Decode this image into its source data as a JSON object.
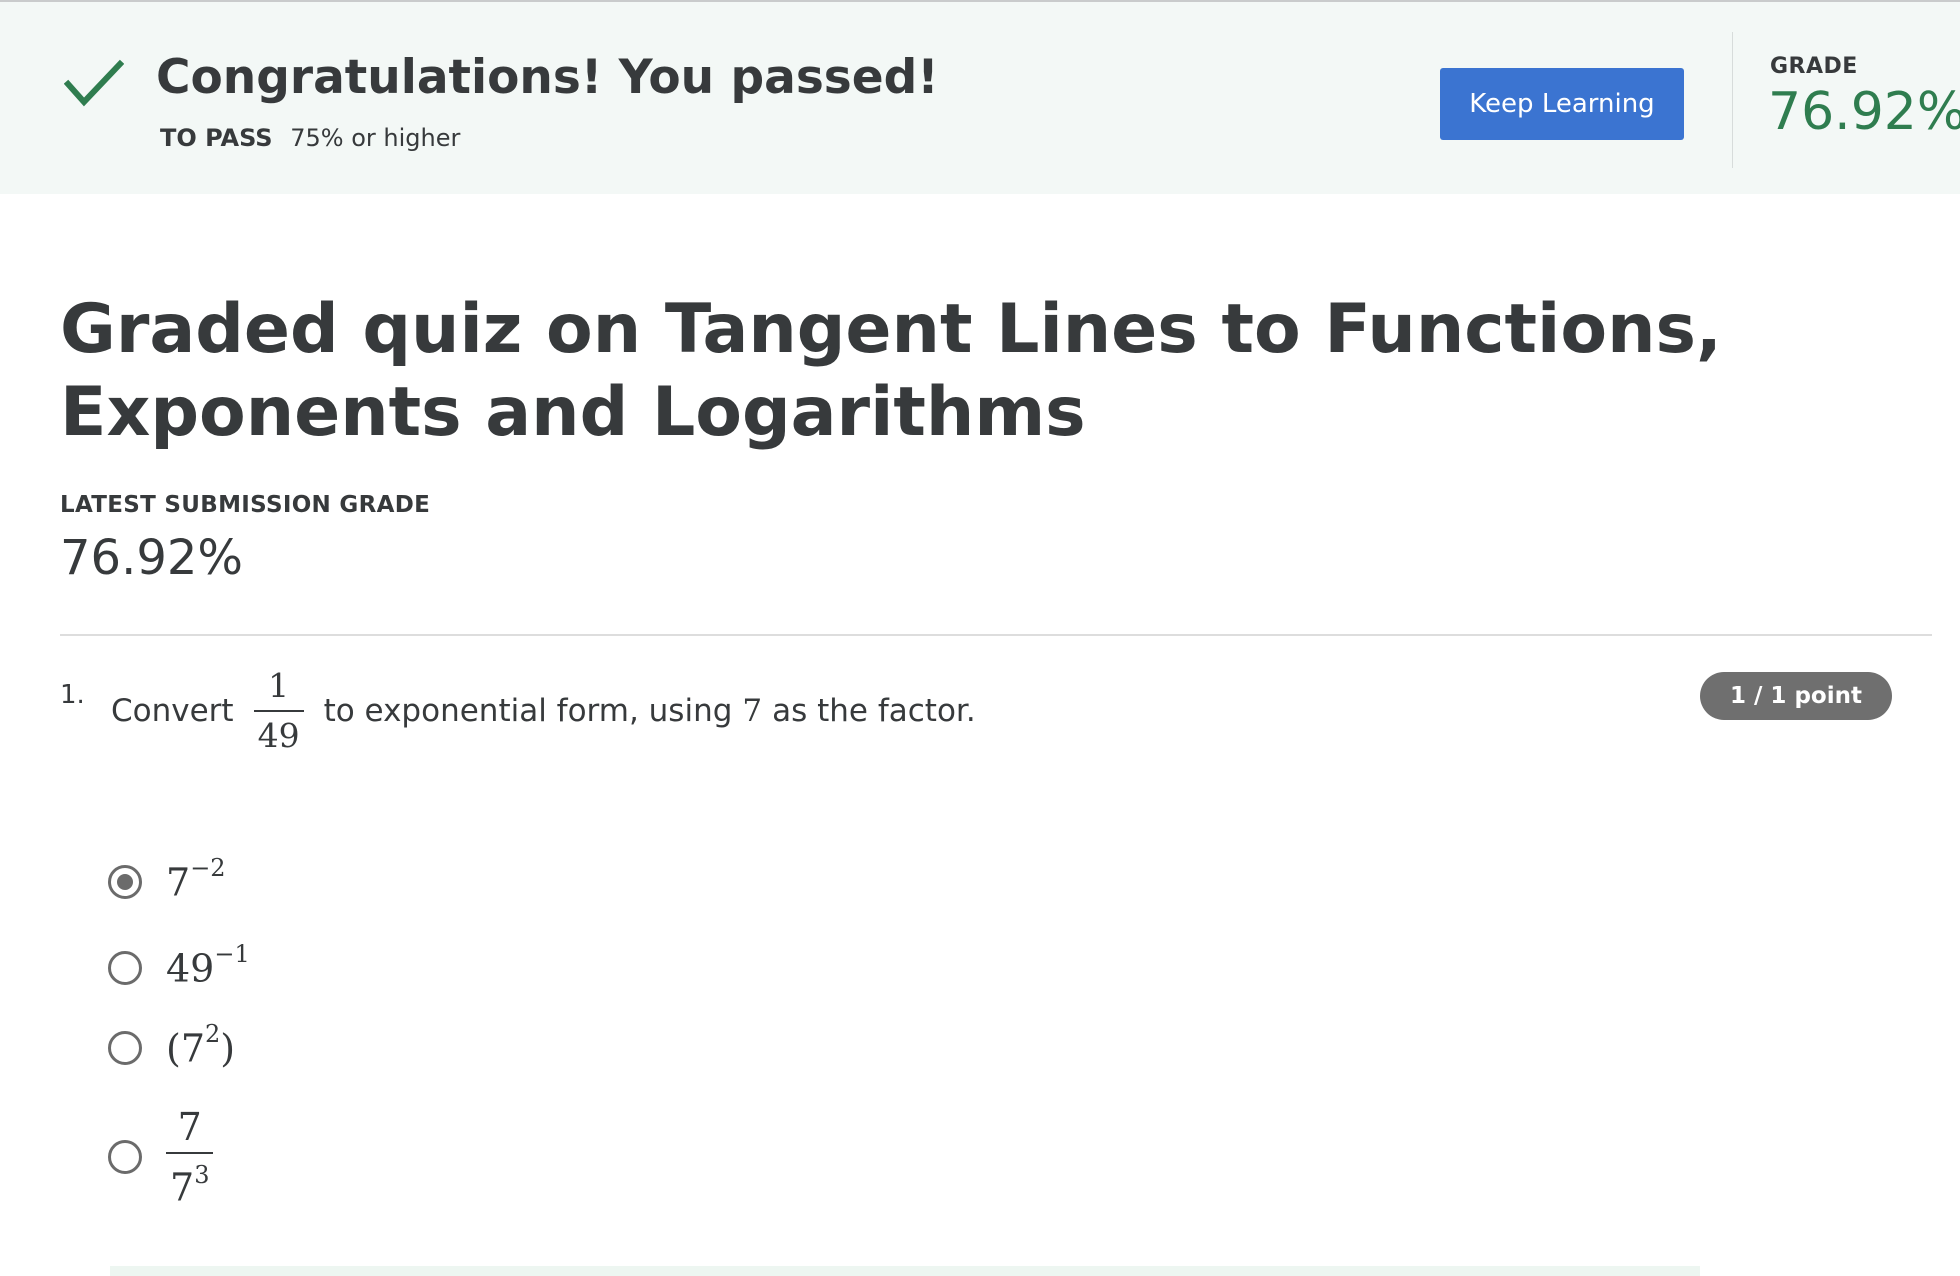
{
  "banner": {
    "title": "Congratulations! You passed!",
    "to_pass_label": "TO PASS",
    "to_pass_value": "75% or higher",
    "keep_learning_label": "Keep Learning",
    "grade_label": "GRADE",
    "grade_value": "76.92%",
    "check_icon": "check-icon",
    "accent_color": "#2f7d4f",
    "button_color": "#3b74d1"
  },
  "quiz": {
    "title": "Graded quiz on Tangent Lines to Functions, Exponents and Logarithms",
    "latest_label": "LATEST SUBMISSION GRADE",
    "latest_value": "76.92%"
  },
  "question": {
    "number": "1.",
    "text_before": "Convert",
    "fraction_num": "1",
    "fraction_den": "49",
    "text_middle": "to exponential form, using",
    "factor": "7",
    "text_after": "as the factor.",
    "points": "1 / 1 point",
    "options": [
      {
        "base": "7",
        "exp": "−2",
        "selected": true
      },
      {
        "base": "49",
        "exp": "−1",
        "selected": false
      },
      {
        "open": "(",
        "base": "7",
        "exp": "2",
        "close": ")",
        "selected": false
      },
      {
        "num": "7",
        "den_base": "7",
        "den_exp": "3",
        "selected": false
      }
    ]
  }
}
